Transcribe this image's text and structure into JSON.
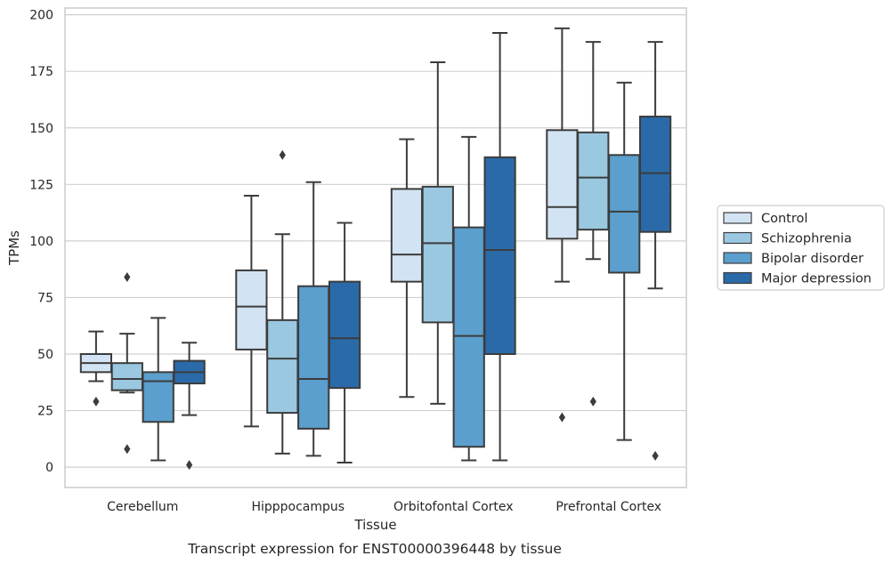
{
  "chart_data": {
    "type": "box",
    "caption": "Transcript expression for ENST00000396448 by tissue",
    "xlabel": "Tissue",
    "ylabel": "TPMs",
    "ylim": [
      -9,
      203
    ],
    "yticks": [
      0,
      25,
      50,
      75,
      100,
      125,
      150,
      175,
      200
    ],
    "grid": true,
    "legend_placement": "right",
    "categories": [
      "Cerebellum",
      "Hipppocampus",
      "Orbitofontal Cortex",
      "Prefrontal Cortex"
    ],
    "series": [
      {
        "name": "Control",
        "color": "#d2e3f3",
        "boxes": [
          {
            "whisker_low": 38,
            "q1": 42,
            "median": 46,
            "q3": 50,
            "whisker_high": 60,
            "outliers": [
              29
            ]
          },
          {
            "whisker_low": 18,
            "q1": 52,
            "median": 71,
            "q3": 87,
            "whisker_high": 120,
            "outliers": []
          },
          {
            "whisker_low": 31,
            "q1": 82,
            "median": 94,
            "q3": 123,
            "whisker_high": 145,
            "outliers": []
          },
          {
            "whisker_low": 82,
            "q1": 101,
            "median": 115,
            "q3": 149,
            "whisker_high": 194,
            "outliers": [
              22
            ]
          }
        ]
      },
      {
        "name": "Schizophrenia",
        "color": "#9ac8e0",
        "boxes": [
          {
            "whisker_low": 33,
            "q1": 34,
            "median": 39,
            "q3": 46,
            "whisker_high": 59,
            "outliers": [
              84,
              8
            ]
          },
          {
            "whisker_low": 6,
            "q1": 24,
            "median": 48,
            "q3": 65,
            "whisker_high": 103,
            "outliers": [
              138
            ]
          },
          {
            "whisker_low": 28,
            "q1": 64,
            "median": 99,
            "q3": 124,
            "whisker_high": 179,
            "outliers": []
          },
          {
            "whisker_low": 92,
            "q1": 105,
            "median": 128,
            "q3": 148,
            "whisker_high": 188,
            "outliers": [
              29
            ]
          }
        ]
      },
      {
        "name": "Bipolar disorder",
        "color": "#5a9fcd",
        "boxes": [
          {
            "whisker_low": 3,
            "q1": 20,
            "median": 38,
            "q3": 42,
            "whisker_high": 66,
            "outliers": []
          },
          {
            "whisker_low": 5,
            "q1": 17,
            "median": 39,
            "q3": 80,
            "whisker_high": 126,
            "outliers": []
          },
          {
            "whisker_low": 3,
            "q1": 9,
            "median": 58,
            "q3": 106,
            "whisker_high": 146,
            "outliers": []
          },
          {
            "whisker_low": 12,
            "q1": 86,
            "median": 113,
            "q3": 138,
            "whisker_high": 170,
            "outliers": []
          }
        ]
      },
      {
        "name": "Major depression",
        "color": "#2a6aa8",
        "boxes": [
          {
            "whisker_low": 23,
            "q1": 37,
            "median": 42,
            "q3": 47,
            "whisker_high": 55,
            "outliers": [
              1
            ]
          },
          {
            "whisker_low": 2,
            "q1": 35,
            "median": 57,
            "q3": 82,
            "whisker_high": 108,
            "outliers": []
          },
          {
            "whisker_low": 3,
            "q1": 50,
            "median": 96,
            "q3": 137,
            "whisker_high": 192,
            "outliers": []
          },
          {
            "whisker_low": 79,
            "q1": 104,
            "median": 130,
            "q3": 155,
            "whisker_high": 188,
            "outliers": [
              5
            ]
          }
        ]
      }
    ]
  }
}
